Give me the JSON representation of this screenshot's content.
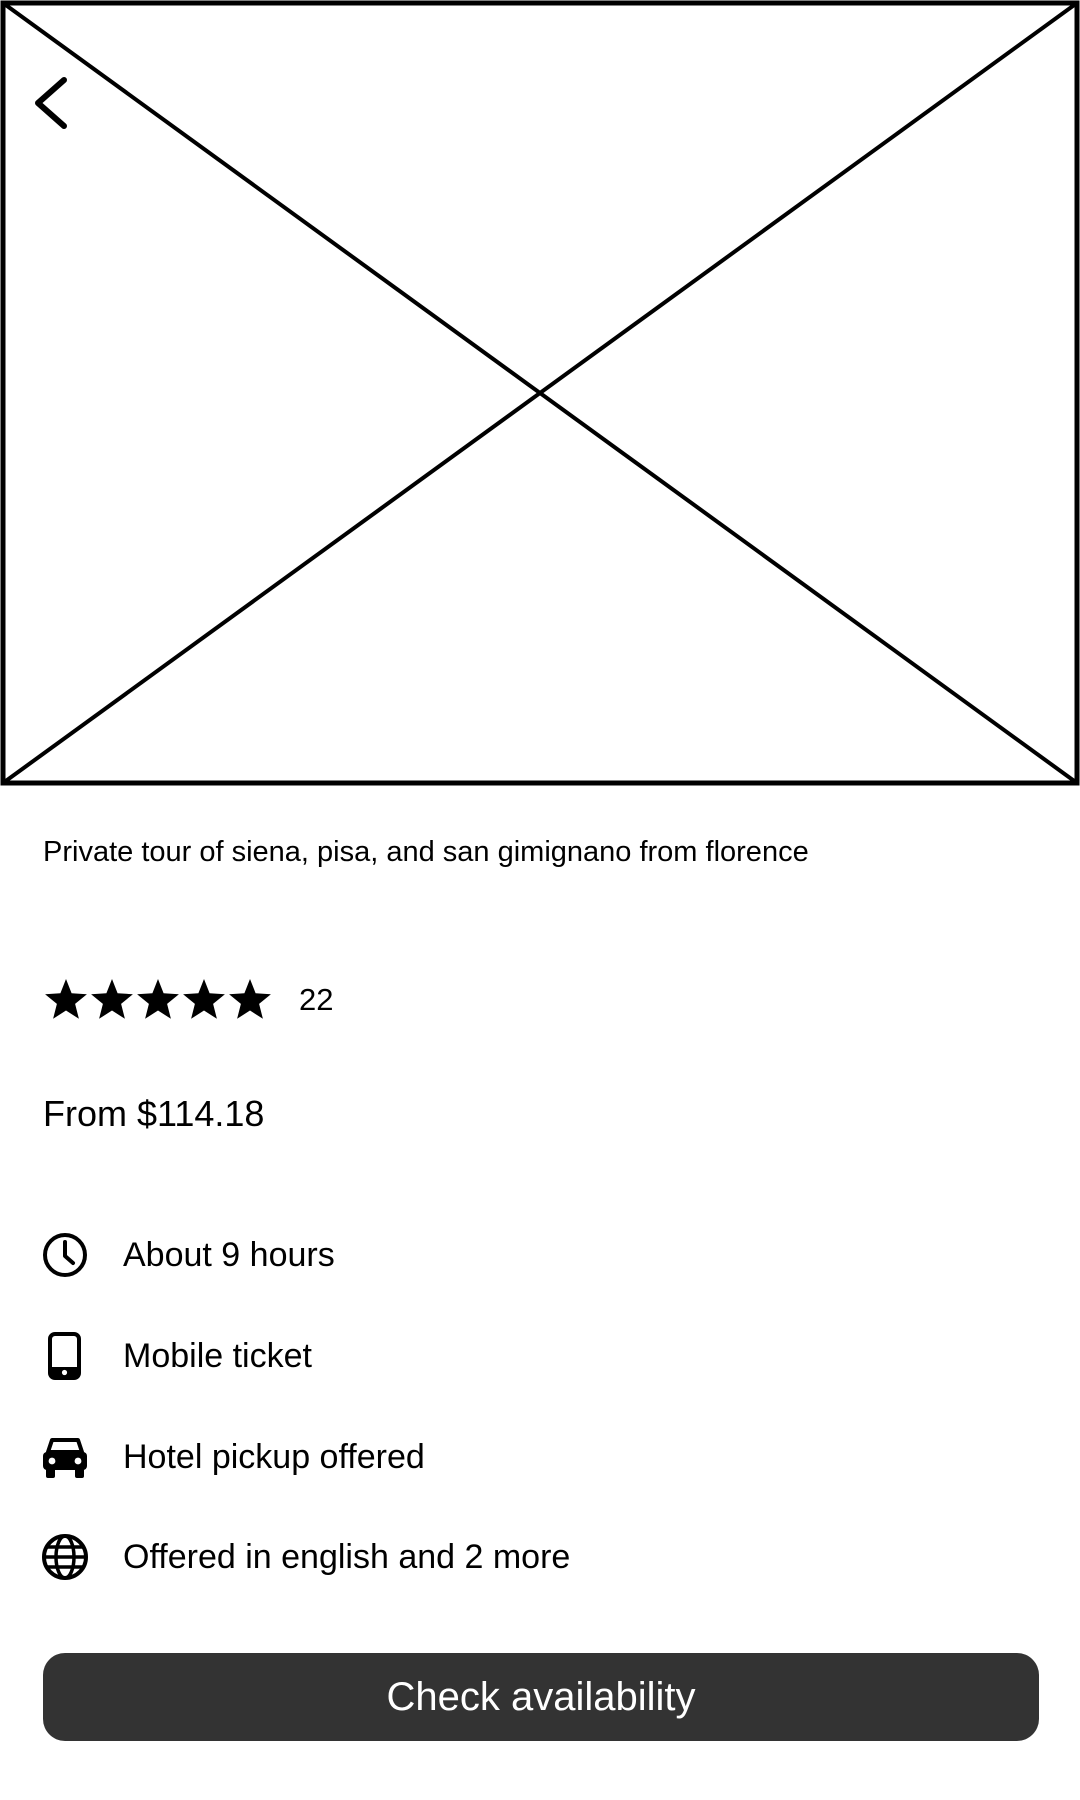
{
  "header": {
    "back_icon": "chevron-left-icon",
    "image_icon": "image-placeholder"
  },
  "tour": {
    "title": "Private tour of siena, pisa, and san gimignano from florence",
    "rating": {
      "stars": 5,
      "max_stars": 5,
      "review_count": "22"
    },
    "price": "From $114.18"
  },
  "features": [
    {
      "icon": "clock-icon",
      "label": "About 9 hours"
    },
    {
      "icon": "mobile-phone-icon",
      "label": "Mobile ticket"
    },
    {
      "icon": "car-icon",
      "label": "Hotel pickup offered"
    },
    {
      "icon": "globe-icon",
      "label": "Offered in english and 2 more"
    }
  ],
  "cta": {
    "label": "Check availability"
  },
  "colors": {
    "button_bg": "#333333",
    "button_text": "#ffffff",
    "ink": "#000000",
    "background": "#ffffff"
  }
}
